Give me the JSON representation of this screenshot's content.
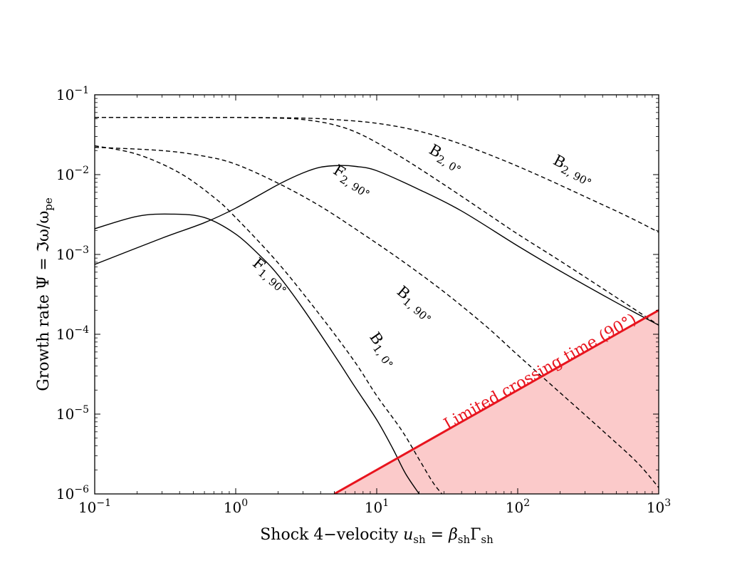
{
  "chart_data": {
    "type": "line",
    "x_scale": "log",
    "y_scale": "log",
    "xlim": [
      0.1,
      1000
    ],
    "ylim": [
      1e-06,
      0.1
    ],
    "xlabel": {
      "prefix": "Shock 4−velocity ",
      "u": "u",
      "u_sub": "sh",
      "eq": " = ",
      "beta": "β",
      "beta_sub": "sh",
      "gamma": "Γ",
      "gamma_sub": "sh"
    },
    "ylabel": {
      "prefix": "Growth rate Ψ = ℑω/ω",
      "sub": "pe"
    },
    "x_ticks": [
      {
        "value": 0.1,
        "base": "10",
        "exp": "−1"
      },
      {
        "value": 1,
        "base": "10",
        "exp": "0"
      },
      {
        "value": 10,
        "base": "10",
        "exp": "1"
      },
      {
        "value": 100,
        "base": "10",
        "exp": "2"
      },
      {
        "value": 1000,
        "base": "10",
        "exp": "3"
      }
    ],
    "y_ticks": [
      {
        "value": 0.1,
        "base": "10",
        "exp": "−1"
      },
      {
        "value": 0.01,
        "base": "10",
        "exp": "−2"
      },
      {
        "value": 0.001,
        "base": "10",
        "exp": "−3"
      },
      {
        "value": 0.0001,
        "base": "10",
        "exp": "−4"
      },
      {
        "value": 1e-05,
        "base": "10",
        "exp": "−5"
      },
      {
        "value": 1e-06,
        "base": "10",
        "exp": "−6"
      }
    ],
    "series": [
      {
        "name": "B2, 0°",
        "style": "dashed",
        "x": [
          0.1,
          0.5,
          1,
          2,
          3,
          5,
          8,
          15,
          30,
          60,
          100,
          200,
          500,
          1000
        ],
        "y": [
          0.052,
          0.052,
          0.052,
          0.051,
          0.049,
          0.042,
          0.031,
          0.0165,
          0.0075,
          0.0033,
          0.0018,
          0.00083,
          0.00029,
          0.00013
        ]
      },
      {
        "name": "B2, 90°",
        "style": "dashed",
        "x": [
          0.1,
          1,
          3,
          5,
          10,
          20,
          40,
          80,
          150,
          300,
          600,
          1000
        ],
        "y": [
          0.052,
          0.052,
          0.051,
          0.049,
          0.044,
          0.035,
          0.024,
          0.015,
          0.0093,
          0.0053,
          0.003,
          0.0019
        ]
      },
      {
        "name": "B1, 0°",
        "style": "dashed",
        "x": [
          0.1,
          0.2,
          0.4,
          0.7,
          1,
          2,
          4,
          7,
          10,
          15,
          20,
          25,
          29
        ],
        "y": [
          0.023,
          0.018,
          0.0105,
          0.0052,
          0.0029,
          0.00078,
          0.00017,
          4.5e-05,
          1.7e-05,
          6.3e-06,
          2.7e-06,
          1.4e-06,
          1e-06
        ]
      },
      {
        "name": "B1, 90°",
        "style": "dashed",
        "x": [
          0.1,
          0.3,
          0.6,
          1,
          2,
          4,
          8,
          15,
          30,
          60,
          100,
          200,
          400,
          700,
          1000
        ],
        "y": [
          0.022,
          0.02,
          0.017,
          0.0135,
          0.0078,
          0.004,
          0.0018,
          0.00084,
          0.00034,
          0.000125,
          5.5e-05,
          1.85e-05,
          6.2e-06,
          2.5e-06,
          1.2e-06
        ]
      },
      {
        "name": "F1, 90°",
        "style": "solid",
        "x": [
          0.1,
          0.2,
          0.35,
          0.6,
          1,
          1.5,
          2,
          3,
          5,
          7,
          10,
          13,
          16,
          20
        ],
        "y": [
          0.0021,
          0.003,
          0.0032,
          0.0029,
          0.0018,
          0.00095,
          0.00055,
          0.00021,
          5.5e-05,
          2.2e-05,
          8.5e-06,
          3.7e-06,
          1.8e-06,
          1e-06
        ]
      },
      {
        "name": "F2, 90°",
        "style": "solid",
        "x": [
          0.1,
          0.3,
          0.6,
          1,
          2,
          3,
          4,
          5.5,
          7,
          10,
          20,
          40,
          100,
          200,
          500,
          1000
        ],
        "y": [
          0.00075,
          0.0016,
          0.0025,
          0.0038,
          0.0075,
          0.0105,
          0.0124,
          0.013,
          0.0127,
          0.0112,
          0.0065,
          0.0035,
          0.00128,
          0.00062,
          0.00025,
          0.00013
        ]
      },
      {
        "name": "Limited crossing time (90°)",
        "style": "solid-red",
        "x": [
          5,
          1000
        ],
        "y": [
          1e-06,
          0.0002
        ]
      }
    ],
    "labels": [
      {
        "name": "B2, 0°",
        "main": "B",
        "sub": "2, 0°",
        "at": [
          30,
          0.0145
        ],
        "angle": 30
      },
      {
        "name": "B2, 90°",
        "main": "B",
        "sub": "2, 90°",
        "at": [
          240,
          0.0103
        ],
        "angle": 28
      },
      {
        "name": "F2, 90°",
        "main": "F",
        "sub": "2, 90°",
        "at": [
          6.5,
          0.0076
        ],
        "angle": 32
      },
      {
        "name": "F1, 90°",
        "main": "F",
        "sub": "1, 90°",
        "at": [
          1.7,
          0.0005
        ],
        "angle": 40
      },
      {
        "name": "B1, 90°",
        "main": "B",
        "sub": "1, 90°",
        "at": [
          18,
          0.00022
        ],
        "angle": 40
      },
      {
        "name": "B1, 0°",
        "main": "B",
        "sub": "1, 0°",
        "at": [
          10.5,
          6e-05
        ],
        "angle": 55
      }
    ],
    "region": {
      "label": "Limited crossing time (90°)",
      "fill": "#fbcaca",
      "line": "#e8141e",
      "label_at": [
        150,
        3e-05
      ]
    }
  }
}
